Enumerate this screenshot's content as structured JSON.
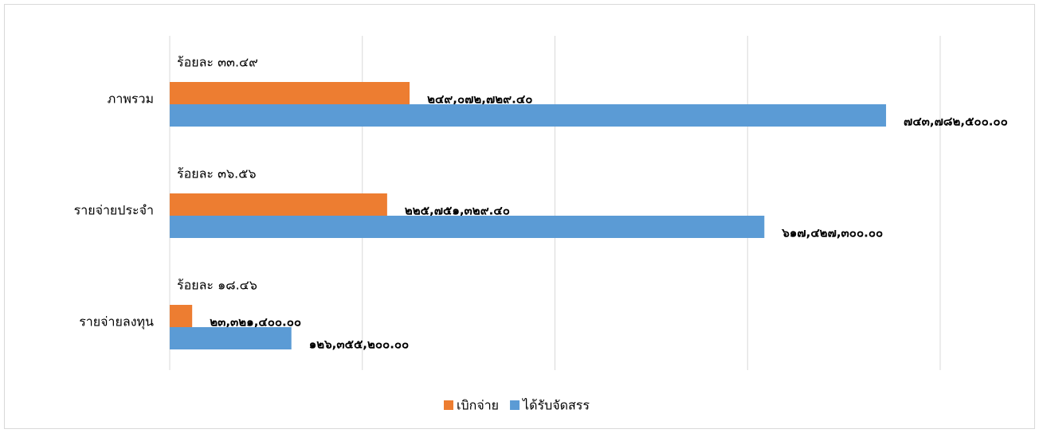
{
  "chart_data": {
    "type": "barh",
    "categories": [
      "ภาพรวม",
      "รายจ่ายประจำ",
      "รายจ่ายลงทุน"
    ],
    "series": [
      {
        "name": "เบิกจ่าย",
        "color": "#ed7d31",
        "values": [
          249072729.4,
          225751329.4,
          23321400.0
        ],
        "value_labels": [
          "๒๔๙,๐๗๒,๗๒๙.๔๐",
          "๒๒๕,๗๕๑,๓๒๙.๔๐",
          "๒๓,๓๒๑,๔๐๐.๐๐"
        ]
      },
      {
        "name": "ได้รับจัดสรร",
        "color": "#5b9bd5",
        "values": [
          743782500.0,
          617427300.0,
          126355200.0
        ],
        "value_labels": [
          "๗๔๓,๗๘๒,๕๐๐.๐๐",
          "๖๑๗,๔๒๗,๓๐๐.๐๐",
          "๑๒๖,๓๕๕,๒๐๐.๐๐"
        ]
      }
    ],
    "annotations": [
      "ร้อยละ ๓๓.๔๙",
      "ร้อยละ  ๓๖.๕๖",
      "ร้อยละ ๑๘.๔๖"
    ],
    "xlim": [
      0,
      800000000
    ],
    "xticks": [
      0,
      200000000,
      400000000,
      600000000,
      800000000
    ],
    "grid": true,
    "legend": "bottom"
  }
}
